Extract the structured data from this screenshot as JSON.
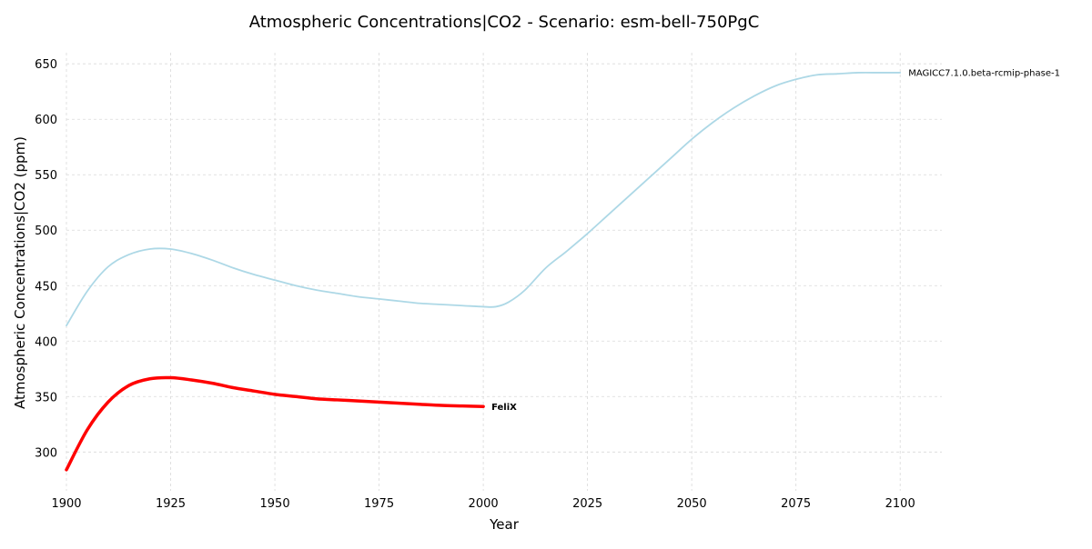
{
  "chart_data": {
    "type": "line",
    "title": "Atmospheric Concentrations|CO2 - Scenario: esm-bell-750PgC",
    "xlabel": "Year",
    "ylabel": "Atmospheric Concentrations|CO2 (ppm)",
    "xlim": [
      1900,
      2110
    ],
    "ylim": [
      265,
      660
    ],
    "xticks": [
      1900,
      1925,
      1950,
      1975,
      2000,
      2025,
      2050,
      2075,
      2100
    ],
    "yticks": [
      300,
      350,
      400,
      450,
      500,
      550,
      600,
      650
    ],
    "grid": true,
    "legend": "inline labels at line ends",
    "series": [
      {
        "name": "MAGICC7.1.0.beta-rcmip-phase-1",
        "color": "#add8e6",
        "line_width": "thin",
        "label_style": "normal",
        "x": [
          1900,
          1905,
          1910,
          1915,
          1920,
          1925,
          1930,
          1935,
          1940,
          1945,
          1950,
          1955,
          1960,
          1965,
          1970,
          1975,
          1980,
          1985,
          1990,
          1995,
          2000,
          2003,
          2006,
          2010,
          2015,
          2020,
          2025,
          2030,
          2035,
          2040,
          2045,
          2050,
          2055,
          2060,
          2065,
          2070,
          2075,
          2080,
          2085,
          2090,
          2095,
          2100
        ],
        "y": [
          414,
          445,
          467,
          478,
          483,
          483,
          479,
          473,
          466,
          460,
          455,
          450,
          446,
          443,
          440,
          438,
          436,
          434,
          433,
          432,
          431,
          431,
          435,
          446,
          466,
          481,
          497,
          514,
          531,
          548,
          565,
          582,
          597,
          610,
          621,
          630,
          636,
          640,
          641,
          642,
          642,
          642
        ]
      },
      {
        "name": "FeliX",
        "color": "#ff0000",
        "line_width": "thick",
        "label_style": "bold",
        "x": [
          1900,
          1905,
          1910,
          1915,
          1920,
          1925,
          1930,
          1935,
          1940,
          1945,
          1950,
          1955,
          1960,
          1965,
          1970,
          1975,
          1980,
          1985,
          1990,
          1995,
          2000
        ],
        "y": [
          284,
          320,
          345,
          360,
          366,
          367,
          365,
          362,
          358,
          355,
          352,
          350,
          348,
          347,
          346,
          345,
          344,
          343,
          342,
          341.5,
          341
        ]
      }
    ]
  }
}
